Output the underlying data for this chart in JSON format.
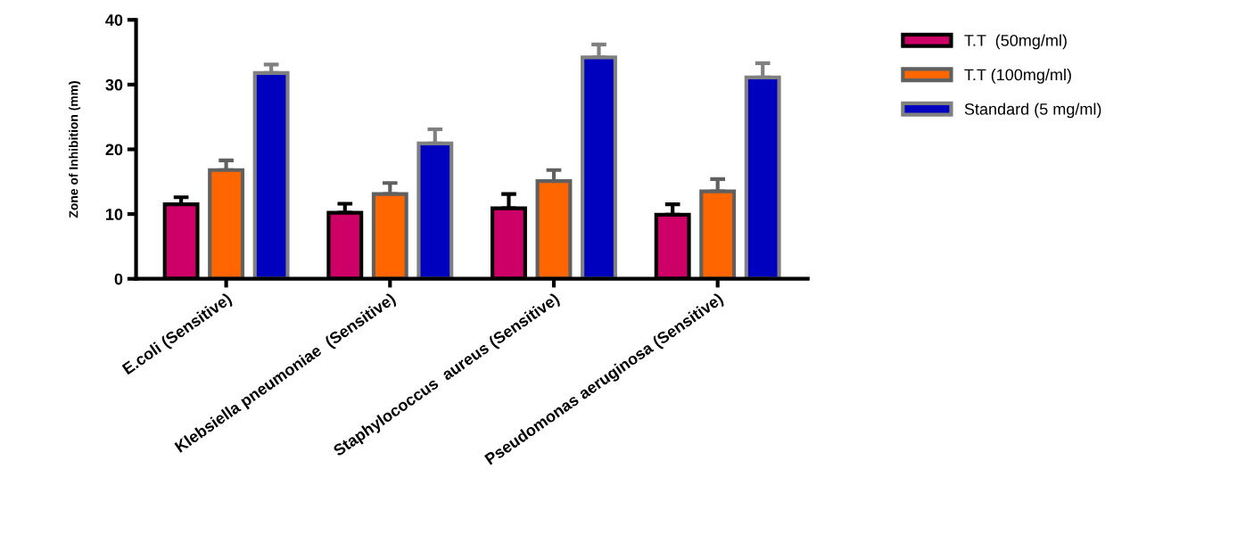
{
  "chart_data": {
    "type": "bar",
    "ylabel": "Zone of Inhibition (mm)",
    "categories": [
      "E.coli (Sensitive)",
      "Klebsiella pneumoniae  (Sensitive)",
      "Staphylococcus  aureus (Sensitive)",
      "Pseudomonas aeruginosa (Sensitive)"
    ],
    "series": [
      {
        "name": "T.T  (50mg/ml)",
        "color": "#cc0066",
        "values": [
          11.5,
          10.2,
          10.9,
          9.9
        ],
        "errors": [
          [
            11.5,
            12.6
          ],
          [
            10.2,
            11.6
          ],
          [
            10.9,
            13.1
          ],
          [
            9.9,
            11.5
          ]
        ]
      },
      {
        "name": "T.T (100mg/ml)",
        "color": "#ff6600",
        "values": [
          16.8,
          13.1,
          15.1,
          13.5
        ],
        "errors": [
          [
            16.8,
            18.3
          ],
          [
            13.1,
            14.8
          ],
          [
            15.1,
            16.8
          ],
          [
            13.5,
            15.4
          ]
        ]
      },
      {
        "name": "Standard (5 mg/ml)",
        "color": "#0000bf",
        "values": [
          31.8,
          20.9,
          34.2,
          31.1
        ],
        "errors": [
          [
            31.8,
            33.1
          ],
          [
            20.9,
            23.1
          ],
          [
            34.2,
            36.2
          ],
          [
            31.1,
            33.3
          ]
        ]
      }
    ],
    "ylim": [
      0,
      40
    ],
    "yticks": [
      0,
      10,
      20,
      30,
      40
    ],
    "grid": false,
    "legend": "top right"
  }
}
